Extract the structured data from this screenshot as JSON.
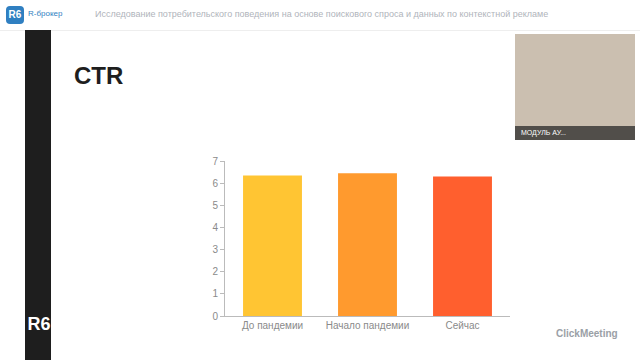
{
  "page": {
    "logo": "R6",
    "brand": "R-брокер",
    "header": "Исследование потребительского поведения на основе поискового спроса и данных по контекстной рекламе",
    "video_label": "МОДУЛЬ АУ...",
    "watermark": "ClickMeeting"
  },
  "chart_data": {
    "type": "bar",
    "title": "CTR",
    "categories": [
      "До пандемии",
      "Начало пандемии",
      "Сейчас"
    ],
    "values": [
      6.35,
      6.45,
      6.3
    ],
    "colors": [
      "#ffc533",
      "#ff9a2e",
      "#ff5f2e"
    ],
    "ylim": [
      0,
      7
    ],
    "yticks": [
      0,
      1,
      2,
      3,
      4,
      5,
      6,
      7
    ],
    "grid": false
  }
}
